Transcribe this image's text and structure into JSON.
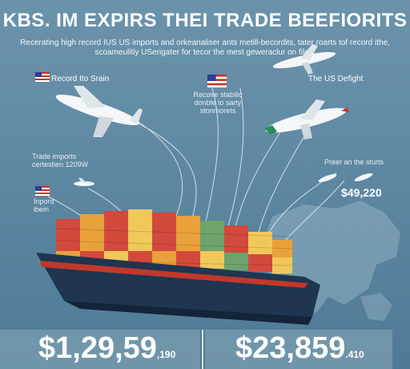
{
  "header": {
    "title": "KBS. IM EXPIRS THEI TRADE BEEFIORITS",
    "subtitle_line1": "Recerating high record IUS US imports and orkeanaliser ants metill-becordits, tater roarts tof record ithe,",
    "subtitle_line2": "scoameulitiy USerigater for tecor the mest geweraclur on files."
  },
  "callouts": {
    "record_label": "Record Ito Srain",
    "middle_note_1": "Recoire stabilic",
    "middle_note_2": "donble to sarty",
    "middle_note_3": "stonmorets",
    "us_defight": "The US Defight",
    "trade_imports_1": "Trade imports",
    "trade_imports_2": "certestien 1209W",
    "inpord_1": "Inpord",
    "inpord_2": "ibein",
    "preer_label": "Preer an the sturts",
    "preer_value": "$49,220"
  },
  "stats": {
    "left_big": "$1,29,59",
    "left_small": ",190",
    "right_big": "$23,859",
    "right_small": ".410"
  },
  "colors": {
    "background": "#5f8aa3",
    "ship_hull": "#1f3550",
    "hull_stripe": "#c0392b",
    "container_red": "#d24a3c",
    "container_orange": "#e9a23b",
    "container_yellow": "#f0c85a",
    "container_green": "#6ea36b"
  },
  "icons": {
    "flag": "us-flag-icon",
    "plane": "airplane-icon",
    "ship": "cargo-ship-icon"
  }
}
